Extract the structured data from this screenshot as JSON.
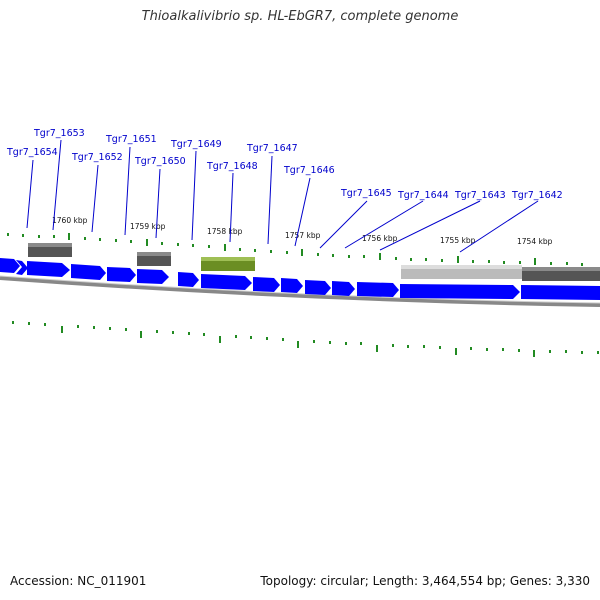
{
  "title": "Thioalkalivibrio sp. HL-EbGR7, complete genome",
  "footer": {
    "accession": "Accession: NC_011901",
    "summary": "Topology: circular; Length: 3,464,554 bp; Genes: 3,330"
  },
  "colors": {
    "gene_forward": "#0000ff",
    "gene_reverse": "#0000ee",
    "label_line": "#0000cc",
    "backbone": "#888888",
    "feature_dark": "#555555",
    "feature_light": "#bbbbbb",
    "feature_green": "#6b8e23",
    "tick": "#228b22"
  },
  "gene_labels": [
    {
      "name": "Tgr7_1654"
    },
    {
      "name": "Tgr7_1653"
    },
    {
      "name": "Tgr7_1652"
    },
    {
      "name": "Tgr7_1651"
    },
    {
      "name": "Tgr7_1650"
    },
    {
      "name": "Tgr7_1649"
    },
    {
      "name": "Tgr7_1648"
    },
    {
      "name": "Tgr7_1647"
    },
    {
      "name": "Tgr7_1646"
    },
    {
      "name": "Tgr7_1645"
    },
    {
      "name": "Tgr7_1644"
    },
    {
      "name": "Tgr7_1643"
    },
    {
      "name": "Tgr7_1642"
    }
  ],
  "kbp_marks": [
    "1760 kbp",
    "1759 kbp",
    "1758 kbp",
    "1757 kbp",
    "1756 kbp",
    "1755 kbp",
    "1754 kbp"
  ]
}
